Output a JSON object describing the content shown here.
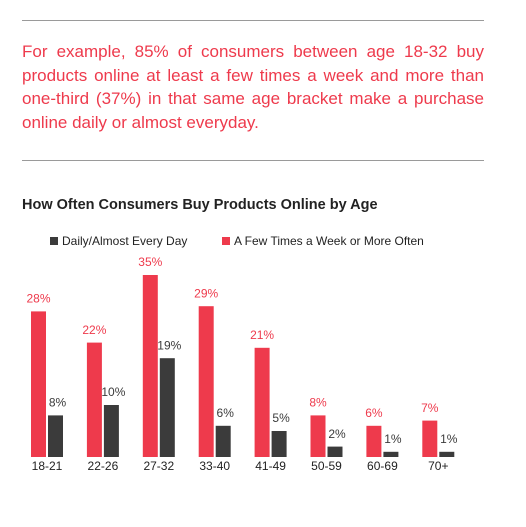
{
  "intro_lines": [
    "For example, 85% of consumers between age 18-32 buy",
    "products online at least a few times a week and more than",
    "one-third (37%) in that same age bracket make a purchase",
    "online daily or almost everyday."
  ],
  "chart_data": {
    "type": "bar",
    "title": "How Often Consumers Buy Products Online by Age",
    "categories": [
      "18-21",
      "22-26",
      "27-32",
      "33-40",
      "41-49",
      "50-59",
      "60-69",
      "70+"
    ],
    "series": [
      {
        "name": "A Few Times a Week or More Often",
        "color": "#ee3a4c",
        "values": [
          28,
          22,
          35,
          29,
          21,
          8,
          6,
          7
        ],
        "value_labels": [
          "28%",
          "22%",
          "35%",
          "29%",
          "21%",
          "8%",
          "6%",
          "7%"
        ]
      },
      {
        "name": "Daily/Almost Every Day",
        "color": "#3b3b3b",
        "values": [
          8,
          10,
          19,
          6,
          5,
          2,
          1,
          1
        ],
        "value_labels": [
          "8%",
          "10%",
          "19%",
          "6%",
          "5%",
          "2%",
          "1%",
          "1%"
        ]
      }
    ]
  }
}
